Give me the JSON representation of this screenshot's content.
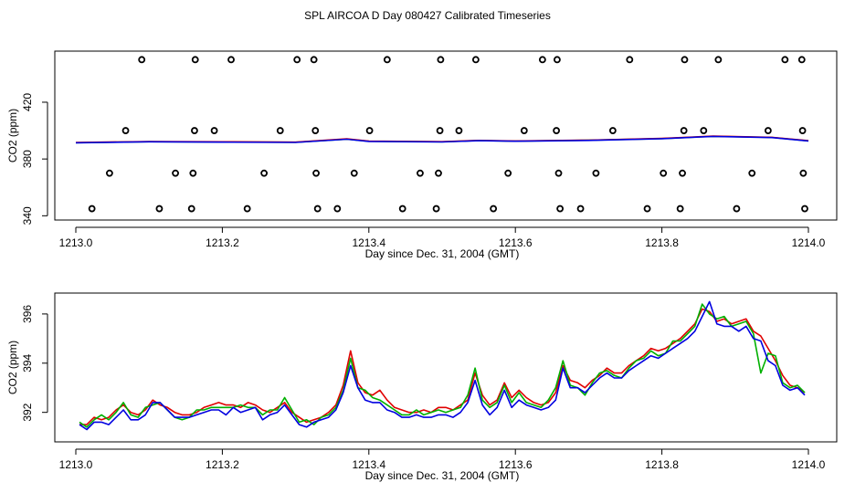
{
  "title": "SPL AIRCOA D  Day 080427  Calibrated Timeseries",
  "colors": {
    "series1": "#e00000",
    "series2": "#00b000",
    "series3": "#0000e0",
    "axis": "#000000"
  },
  "chart_data": [
    {
      "type": "scatter",
      "xlabel": "Day since Dec. 31, 2004 (GMT)",
      "ylabel": "CO2 (ppm)",
      "xlim": [
        1213.0,
        1214.0
      ],
      "ylim": [
        337,
        456
      ],
      "xticks": [
        1213.0,
        1213.2,
        1213.4,
        1213.6,
        1213.8,
        1214.0
      ],
      "xtick_labels": [
        "1213.0",
        "1213.2",
        "1213.4",
        "1213.6",
        "1213.8",
        "1214.0"
      ],
      "yticks": [
        340,
        380,
        420
      ],
      "ytick_labels": [
        "340",
        "380",
        "420"
      ],
      "points": [
        {
          "x": 1213.09,
          "y": 450
        },
        {
          "x": 1213.163,
          "y": 450
        },
        {
          "x": 1213.212,
          "y": 450
        },
        {
          "x": 1213.302,
          "y": 450
        },
        {
          "x": 1213.325,
          "y": 450
        },
        {
          "x": 1213.425,
          "y": 450
        },
        {
          "x": 1213.498,
          "y": 450
        },
        {
          "x": 1213.546,
          "y": 450
        },
        {
          "x": 1213.637,
          "y": 450
        },
        {
          "x": 1213.657,
          "y": 450
        },
        {
          "x": 1213.756,
          "y": 450
        },
        {
          "x": 1213.831,
          "y": 450
        },
        {
          "x": 1213.877,
          "y": 450
        },
        {
          "x": 1213.968,
          "y": 450
        },
        {
          "x": 1213.991,
          "y": 450
        },
        {
          "x": 1213.068,
          "y": 400
        },
        {
          "x": 1213.162,
          "y": 400
        },
        {
          "x": 1213.189,
          "y": 400
        },
        {
          "x": 1213.279,
          "y": 400
        },
        {
          "x": 1213.327,
          "y": 400
        },
        {
          "x": 1213.401,
          "y": 400
        },
        {
          "x": 1213.497,
          "y": 400
        },
        {
          "x": 1213.523,
          "y": 400
        },
        {
          "x": 1213.612,
          "y": 400
        },
        {
          "x": 1213.656,
          "y": 400
        },
        {
          "x": 1213.733,
          "y": 400
        },
        {
          "x": 1213.83,
          "y": 400
        },
        {
          "x": 1213.857,
          "y": 400
        },
        {
          "x": 1213.945,
          "y": 400
        },
        {
          "x": 1213.992,
          "y": 400
        },
        {
          "x": 1213.046,
          "y": 370
        },
        {
          "x": 1213.136,
          "y": 370
        },
        {
          "x": 1213.16,
          "y": 370
        },
        {
          "x": 1213.257,
          "y": 370
        },
        {
          "x": 1213.328,
          "y": 370
        },
        {
          "x": 1213.38,
          "y": 370
        },
        {
          "x": 1213.47,
          "y": 370
        },
        {
          "x": 1213.495,
          "y": 370
        },
        {
          "x": 1213.59,
          "y": 370
        },
        {
          "x": 1213.659,
          "y": 370
        },
        {
          "x": 1213.71,
          "y": 370
        },
        {
          "x": 1213.802,
          "y": 370
        },
        {
          "x": 1213.828,
          "y": 370
        },
        {
          "x": 1213.923,
          "y": 370
        },
        {
          "x": 1213.993,
          "y": 370
        },
        {
          "x": 1213.022,
          "y": 345
        },
        {
          "x": 1213.114,
          "y": 345
        },
        {
          "x": 1213.158,
          "y": 345
        },
        {
          "x": 1213.234,
          "y": 345
        },
        {
          "x": 1213.33,
          "y": 345
        },
        {
          "x": 1213.357,
          "y": 345
        },
        {
          "x": 1213.446,
          "y": 345
        },
        {
          "x": 1213.492,
          "y": 345
        },
        {
          "x": 1213.57,
          "y": 345
        },
        {
          "x": 1213.661,
          "y": 345
        },
        {
          "x": 1213.689,
          "y": 345
        },
        {
          "x": 1213.78,
          "y": 345
        },
        {
          "x": 1213.825,
          "y": 345
        },
        {
          "x": 1213.902,
          "y": 345
        },
        {
          "x": 1213.995,
          "y": 345
        }
      ],
      "series": [
        {
          "color": "#00b000",
          "x": [
            1213.0,
            1213.1,
            1213.2,
            1213.3,
            1213.37,
            1213.4,
            1213.5,
            1213.55,
            1213.6,
            1213.7,
            1213.8,
            1213.87,
            1213.95,
            1214.0
          ],
          "values": [
            391.5,
            392.2,
            392.0,
            391.8,
            394.0,
            392.5,
            392.1,
            393.0,
            392.6,
            393.2,
            394.4,
            396.0,
            395.2,
            392.8
          ]
        },
        {
          "color": "#e00000",
          "x": [
            1213.0,
            1213.1,
            1213.2,
            1213.3,
            1213.37,
            1213.4,
            1213.5,
            1213.55,
            1213.6,
            1213.7,
            1213.8,
            1213.87,
            1213.95,
            1214.0
          ],
          "values": [
            391.6,
            392.3,
            392.1,
            391.9,
            394.2,
            392.6,
            392.2,
            393.1,
            392.7,
            393.3,
            394.5,
            396.1,
            395.3,
            392.9
          ]
        },
        {
          "color": "#0000e0",
          "x": [
            1213.0,
            1213.1,
            1213.2,
            1213.3,
            1213.37,
            1213.4,
            1213.5,
            1213.55,
            1213.6,
            1213.7,
            1213.8,
            1213.87,
            1213.95,
            1214.0
          ],
          "values": [
            391.4,
            392.1,
            391.9,
            391.7,
            393.9,
            392.4,
            392.0,
            392.9,
            392.5,
            393.1,
            394.3,
            395.9,
            395.1,
            392.7
          ]
        }
      ]
    },
    {
      "type": "line",
      "xlabel": "Day since Dec. 31, 2004 (GMT)",
      "ylabel": "CO2 (ppm)",
      "xlim": [
        1213.0,
        1214.0
      ],
      "ylim": [
        390.8,
        396.85
      ],
      "xticks": [
        1213.0,
        1213.2,
        1213.4,
        1213.6,
        1213.8,
        1214.0
      ],
      "xtick_labels": [
        "1213.0",
        "1213.2",
        "1213.4",
        "1213.6",
        "1213.8",
        "1214.0"
      ],
      "yticks": [
        392,
        394,
        396
      ],
      "ytick_labels": [
        "392",
        "394",
        "396"
      ],
      "x": [
        1213.005,
        1213.015,
        1213.025,
        1213.035,
        1213.045,
        1213.055,
        1213.065,
        1213.075,
        1213.085,
        1213.095,
        1213.105,
        1213.115,
        1213.125,
        1213.135,
        1213.145,
        1213.155,
        1213.165,
        1213.175,
        1213.185,
        1213.195,
        1213.205,
        1213.215,
        1213.225,
        1213.235,
        1213.245,
        1213.255,
        1213.265,
        1213.275,
        1213.285,
        1213.295,
        1213.305,
        1213.315,
        1213.325,
        1213.335,
        1213.345,
        1213.355,
        1213.365,
        1213.375,
        1213.385,
        1213.395,
        1213.405,
        1213.415,
        1213.425,
        1213.435,
        1213.445,
        1213.455,
        1213.465,
        1213.475,
        1213.485,
        1213.495,
        1213.505,
        1213.515,
        1213.525,
        1213.535,
        1213.545,
        1213.555,
        1213.565,
        1213.575,
        1213.585,
        1213.595,
        1213.605,
        1213.615,
        1213.625,
        1213.635,
        1213.645,
        1213.655,
        1213.665,
        1213.675,
        1213.685,
        1213.695,
        1213.705,
        1213.715,
        1213.725,
        1213.735,
        1213.745,
        1213.755,
        1213.765,
        1213.775,
        1213.785,
        1213.795,
        1213.805,
        1213.815,
        1213.825,
        1213.835,
        1213.845,
        1213.855,
        1213.865,
        1213.875,
        1213.885,
        1213.895,
        1213.905,
        1213.915,
        1213.925,
        1213.935,
        1213.945,
        1213.955,
        1213.965,
        1213.975,
        1213.985,
        1213.995
      ],
      "series": [
        {
          "color": "#e00000",
          "values": [
            391.5,
            391.5,
            391.8,
            391.7,
            391.8,
            392.1,
            392.3,
            392.0,
            391.9,
            392.1,
            392.5,
            392.3,
            392.2,
            392.0,
            391.9,
            391.9,
            392.0,
            392.2,
            392.3,
            392.4,
            392.3,
            392.3,
            392.2,
            392.4,
            392.3,
            392.1,
            392.0,
            392.2,
            392.4,
            392.0,
            391.8,
            391.6,
            391.7,
            391.8,
            392.0,
            392.3,
            393.1,
            394.5,
            393.2,
            392.8,
            392.7,
            392.9,
            392.5,
            392.2,
            392.1,
            392.0,
            392.0,
            392.1,
            392.0,
            392.2,
            392.2,
            392.1,
            392.3,
            392.5,
            393.6,
            392.7,
            392.3,
            392.5,
            393.2,
            392.6,
            392.9,
            392.6,
            392.4,
            392.3,
            392.4,
            392.8,
            393.9,
            393.3,
            393.2,
            393.0,
            393.3,
            393.5,
            393.8,
            393.6,
            393.6,
            393.9,
            394.1,
            394.3,
            394.6,
            394.5,
            394.6,
            394.8,
            395.0,
            395.3,
            395.6,
            396.2,
            396.1,
            395.7,
            395.8,
            395.6,
            395.7,
            395.8,
            395.3,
            395.1,
            394.6,
            394.1,
            393.5,
            393.1,
            393.0,
            392.8
          ]
        },
        {
          "color": "#00b000",
          "values": [
            391.6,
            391.4,
            391.7,
            391.9,
            391.7,
            392.0,
            392.4,
            391.9,
            391.8,
            392.2,
            392.3,
            392.4,
            392.1,
            391.8,
            391.7,
            391.8,
            392.1,
            392.1,
            392.2,
            392.2,
            392.2,
            392.2,
            392.3,
            392.2,
            392.2,
            391.9,
            392.1,
            392.1,
            392.6,
            392.1,
            391.6,
            391.7,
            391.5,
            391.8,
            391.9,
            392.2,
            392.9,
            394.2,
            393.0,
            392.9,
            392.6,
            392.5,
            392.3,
            392.1,
            391.9,
            391.9,
            392.1,
            391.9,
            392.0,
            392.1,
            392.0,
            392.1,
            392.2,
            392.7,
            393.8,
            392.5,
            392.2,
            392.4,
            393.1,
            392.4,
            392.8,
            392.4,
            392.3,
            392.2,
            392.5,
            393.0,
            394.1,
            393.1,
            393.0,
            392.7,
            393.2,
            393.6,
            393.7,
            393.5,
            393.4,
            393.8,
            394.1,
            394.2,
            394.5,
            394.3,
            394.4,
            394.9,
            394.9,
            395.2,
            395.5,
            396.4,
            396.0,
            395.8,
            395.9,
            395.5,
            395.6,
            395.7,
            395.2,
            393.6,
            394.4,
            394.3,
            393.2,
            393.0,
            393.1,
            392.8
          ]
        },
        {
          "color": "#0000e0",
          "values": [
            391.5,
            391.3,
            391.6,
            391.6,
            391.5,
            391.8,
            392.1,
            391.7,
            391.7,
            391.9,
            392.4,
            392.4,
            392.1,
            391.8,
            391.8,
            391.8,
            391.9,
            392.0,
            392.1,
            392.1,
            391.9,
            392.2,
            392.0,
            392.1,
            392.2,
            391.7,
            391.9,
            392.0,
            392.3,
            391.9,
            391.5,
            391.4,
            391.6,
            391.7,
            391.8,
            392.1,
            392.8,
            393.9,
            393.0,
            392.5,
            392.4,
            392.4,
            392.1,
            392.0,
            391.8,
            391.8,
            391.9,
            391.8,
            391.8,
            391.9,
            391.9,
            391.8,
            392.0,
            392.4,
            393.3,
            392.3,
            391.9,
            392.2,
            392.9,
            392.2,
            392.5,
            392.3,
            392.2,
            392.1,
            392.2,
            392.5,
            393.8,
            393.0,
            393.0,
            392.8,
            393.1,
            393.4,
            393.6,
            393.4,
            393.4,
            393.7,
            393.9,
            394.1,
            394.3,
            394.2,
            394.4,
            394.6,
            394.8,
            395.0,
            395.3,
            395.9,
            396.5,
            395.6,
            395.5,
            395.5,
            395.3,
            395.5,
            395.0,
            394.9,
            394.1,
            393.9,
            393.1,
            392.9,
            393.0,
            392.7
          ]
        }
      ]
    }
  ]
}
